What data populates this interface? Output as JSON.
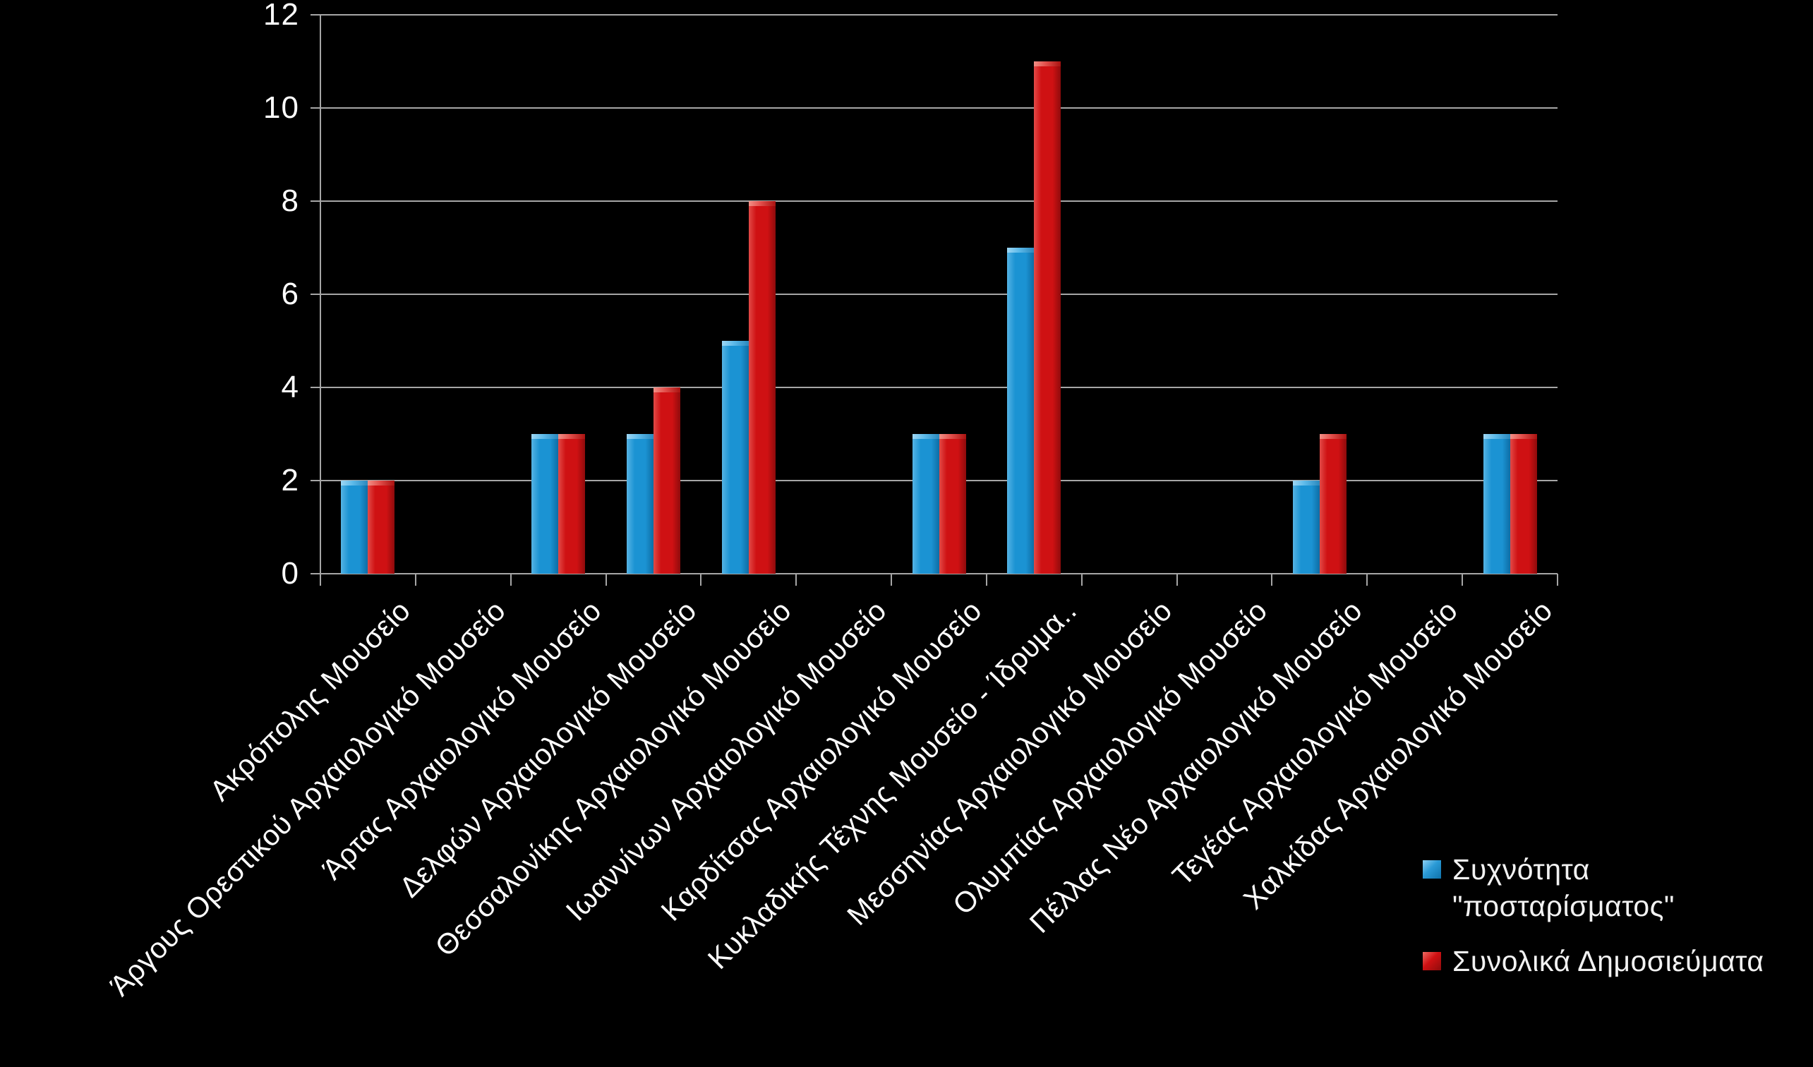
{
  "background_color": "#000000",
  "chart_data": {
    "type": "bar",
    "title": "",
    "categories": [
      "Ακρόπολης Μουσείο",
      "Άργους Ορεστικού Αρχαιολογικό Μουσείο",
      "Άρτας Αρχαιολογικό Μουσείο",
      "Δελφών Αρχαιολογικό Μουσείο",
      "Θεσσαλονίκης Αρχαιολογικό Μουσείο",
      "Ιωαννίνων Αρχαιολογικό Μουσείο",
      "Καρδίτσας Αρχαιολογικό Μουσείο",
      "Κυκλαδικής Τέχνης Μουσείο - Ίδρυμα..",
      "Μεσσηνίας Αρχαιολογικό Μουσείο",
      "Ολυμπίας Αρχαιολογικό Μουσείο",
      "Πέλλας Νέο Αρχαιολογικό Μουσείο",
      "Τεγέας Αρχαιολογικό Μουσείο",
      "Χαλκίδας Αρχαιολογικό Μουσείο"
    ],
    "series": [
      {
        "name": "Συχνότητα \"ποσταρίσματος\"",
        "color": "#1B93D3",
        "values": [
          2,
          0,
          3,
          3,
          5,
          0,
          3,
          7,
          0,
          0,
          2,
          0,
          3
        ]
      },
      {
        "name": "Συνολικά Δημοσιεύματα",
        "color": "#CF1113",
        "values": [
          2,
          0,
          3,
          4,
          8,
          0,
          3,
          11,
          0,
          0,
          3,
          0,
          3
        ]
      }
    ],
    "xlabel": "",
    "ylabel": "",
    "ylim": [
      0,
      12
    ],
    "yticks": [
      0,
      2,
      4,
      6,
      8,
      10,
      12
    ],
    "grid": true,
    "grid_color": "#A6A6A6",
    "text_color": "#FFFFFF",
    "x_label_rotation_deg": -45,
    "legend_position": "bottom-right"
  },
  "legend": {
    "items": [
      {
        "series": "frequency-of-posting",
        "color": "#1B93D3",
        "label_lines": [
          "Συχνότητα",
          "\"ποσταρίσματος\""
        ]
      },
      {
        "series": "total-publications",
        "color": "#CF1113",
        "label_lines": [
          "Συνολικά Δημοσιεύματα"
        ]
      }
    ]
  }
}
